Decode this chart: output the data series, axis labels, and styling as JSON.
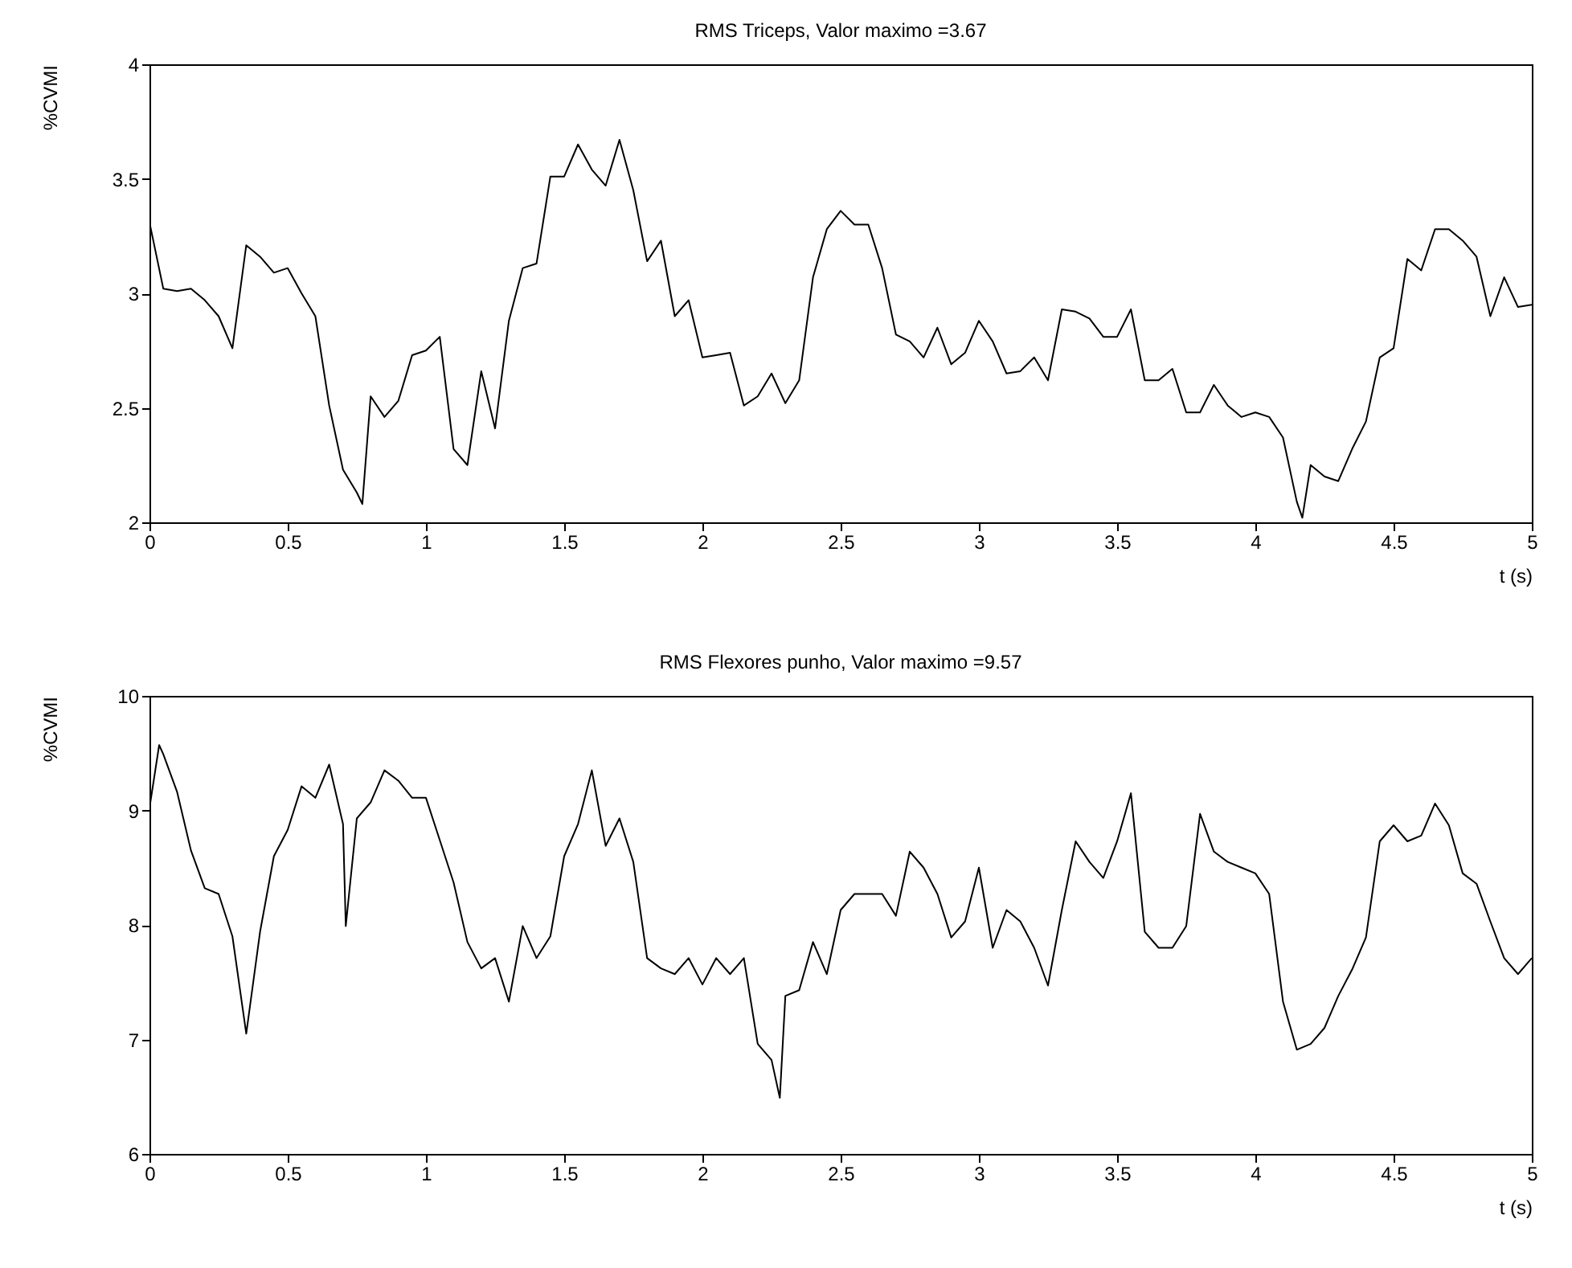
{
  "chart_data": [
    {
      "type": "line",
      "title": "RMS Triceps, Valor maximo =3.67",
      "xlabel": "t (s)",
      "ylabel": "%CVMI",
      "xlim": [
        0,
        5
      ],
      "xticks": [
        0,
        0.5,
        1,
        1.5,
        2,
        2.5,
        3,
        3.5,
        4,
        4.5,
        5
      ],
      "ylim": [
        2,
        4
      ],
      "yticks": [
        2,
        2.5,
        3,
        3.5,
        4
      ],
      "x": [
        0,
        0.05,
        0.1,
        0.15,
        0.2,
        0.25,
        0.3,
        0.35,
        0.4,
        0.45,
        0.5,
        0.55,
        0.6,
        0.65,
        0.7,
        0.75,
        0.77,
        0.8,
        0.85,
        0.9,
        0.95,
        1,
        1.05,
        1.1,
        1.15,
        1.2,
        1.25,
        1.3,
        1.35,
        1.4,
        1.45,
        1.5,
        1.55,
        1.6,
        1.65,
        1.7,
        1.75,
        1.8,
        1.85,
        1.9,
        1.95,
        2,
        2.05,
        2.1,
        2.15,
        2.2,
        2.25,
        2.3,
        2.35,
        2.4,
        2.45,
        2.5,
        2.55,
        2.6,
        2.65,
        2.7,
        2.75,
        2.8,
        2.85,
        2.9,
        2.95,
        3,
        3.05,
        3.1,
        3.15,
        3.2,
        3.25,
        3.3,
        3.35,
        3.4,
        3.45,
        3.5,
        3.55,
        3.6,
        3.65,
        3.7,
        3.75,
        3.8,
        3.85,
        3.9,
        3.95,
        4,
        4.05,
        4.1,
        4.15,
        4.17,
        4.2,
        4.25,
        4.3,
        4.35,
        4.4,
        4.45,
        4.5,
        4.55,
        4.6,
        4.65,
        4.7,
        4.75,
        4.8,
        4.85,
        4.9,
        4.95,
        5
      ],
      "series": [
        {
          "color": "#000000",
          "values": [
            3.31,
            3.02,
            3.01,
            3.02,
            2.97,
            2.9,
            2.76,
            3.21,
            3.16,
            3.09,
            3.11,
            3.0,
            2.9,
            2.51,
            2.23,
            2.13,
            2.08,
            2.55,
            2.46,
            2.53,
            2.73,
            2.75,
            2.81,
            2.32,
            2.25,
            2.66,
            2.41,
            2.88,
            3.11,
            3.13,
            3.51,
            3.51,
            3.65,
            3.54,
            3.47,
            3.67,
            3.45,
            3.14,
            3.23,
            2.9,
            2.97,
            2.72,
            2.73,
            2.74,
            2.51,
            2.55,
            2.65,
            2.52,
            2.62,
            3.07,
            3.28,
            3.36,
            3.3,
            3.3,
            3.11,
            2.82,
            2.79,
            2.72,
            2.85,
            2.69,
            2.74,
            2.88,
            2.79,
            2.65,
            2.66,
            2.72,
            2.62,
            2.93,
            2.92,
            2.89,
            2.81,
            2.81,
            2.93,
            2.62,
            2.62,
            2.67,
            2.48,
            2.48,
            2.6,
            2.51,
            2.46,
            2.48,
            2.46,
            2.37,
            2.09,
            2.02,
            2.25,
            2.2,
            2.18,
            2.32,
            2.44,
            2.72,
            2.76,
            3.15,
            3.1,
            3.28,
            3.28,
            3.23,
            3.16,
            2.9,
            3.07,
            2.94,
            2.95
          ]
        }
      ]
    },
    {
      "type": "line",
      "title": "RMS Flexores punho, Valor maximo =9.57",
      "xlabel": "t (s)",
      "ylabel": "%CVMI",
      "xlim": [
        0,
        5
      ],
      "xticks": [
        0,
        0.5,
        1,
        1.5,
        2,
        2.5,
        3,
        3.5,
        4,
        4.5,
        5
      ],
      "ylim": [
        6,
        10
      ],
      "yticks": [
        6,
        7,
        8,
        9,
        10
      ],
      "x": [
        0,
        0.035,
        0.05,
        0.1,
        0.15,
        0.2,
        0.25,
        0.3,
        0.35,
        0.4,
        0.45,
        0.5,
        0.55,
        0.6,
        0.65,
        0.7,
        0.71,
        0.75,
        0.8,
        0.85,
        0.9,
        0.95,
        1,
        1.05,
        1.1,
        1.15,
        1.2,
        1.25,
        1.3,
        1.35,
        1.4,
        1.45,
        1.5,
        1.55,
        1.6,
        1.65,
        1.7,
        1.75,
        1.8,
        1.85,
        1.9,
        1.95,
        2,
        2.05,
        2.1,
        2.15,
        2.2,
        2.25,
        2.28,
        2.3,
        2.35,
        2.4,
        2.45,
        2.5,
        2.55,
        2.6,
        2.65,
        2.7,
        2.75,
        2.8,
        2.85,
        2.9,
        2.95,
        3,
        3.05,
        3.1,
        3.15,
        3.2,
        3.25,
        3.3,
        3.35,
        3.4,
        3.45,
        3.5,
        3.55,
        3.6,
        3.65,
        3.7,
        3.75,
        3.8,
        3.85,
        3.9,
        3.95,
        4,
        4.05,
        4.1,
        4.15,
        4.2,
        4.25,
        4.3,
        4.35,
        4.4,
        4.45,
        4.5,
        4.55,
        4.6,
        4.65,
        4.7,
        4.75,
        4.8,
        4.85,
        4.9,
        4.95,
        5
      ],
      "series": [
        {
          "color": "#000000",
          "values": [
            9.02,
            9.57,
            9.49,
            9.16,
            8.65,
            8.32,
            8.27,
            7.9,
            7.05,
            7.94,
            8.6,
            8.83,
            9.21,
            9.11,
            9.4,
            8.88,
            7.99,
            8.93,
            9.07,
            9.35,
            9.26,
            9.11,
            9.11,
            8.74,
            8.37,
            7.85,
            7.62,
            7.71,
            7.33,
            7.99,
            7.71,
            7.9,
            8.6,
            8.88,
            9.35,
            8.69,
            8.93,
            8.55,
            7.71,
            7.62,
            7.57,
            7.71,
            7.48,
            7.71,
            7.57,
            7.71,
            6.96,
            6.82,
            6.49,
            7.38,
            7.43,
            7.85,
            7.57,
            8.13,
            8.27,
            8.27,
            8.27,
            8.08,
            8.64,
            8.5,
            8.27,
            7.89,
            8.03,
            8.5,
            7.8,
            8.13,
            8.03,
            7.8,
            7.47,
            8.13,
            8.73,
            8.55,
            8.41,
            8.73,
            9.15,
            7.94,
            7.8,
            7.8,
            7.99,
            8.97,
            8.64,
            8.55,
            8.5,
            8.45,
            8.27,
            7.33,
            6.91,
            6.96,
            7.1,
            7.38,
            7.61,
            7.89,
            8.73,
            8.87,
            8.73,
            8.78,
            9.06,
            8.87,
            8.45,
            8.36,
            8.03,
            7.71,
            7.57,
            7.71
          ]
        }
      ]
    }
  ]
}
